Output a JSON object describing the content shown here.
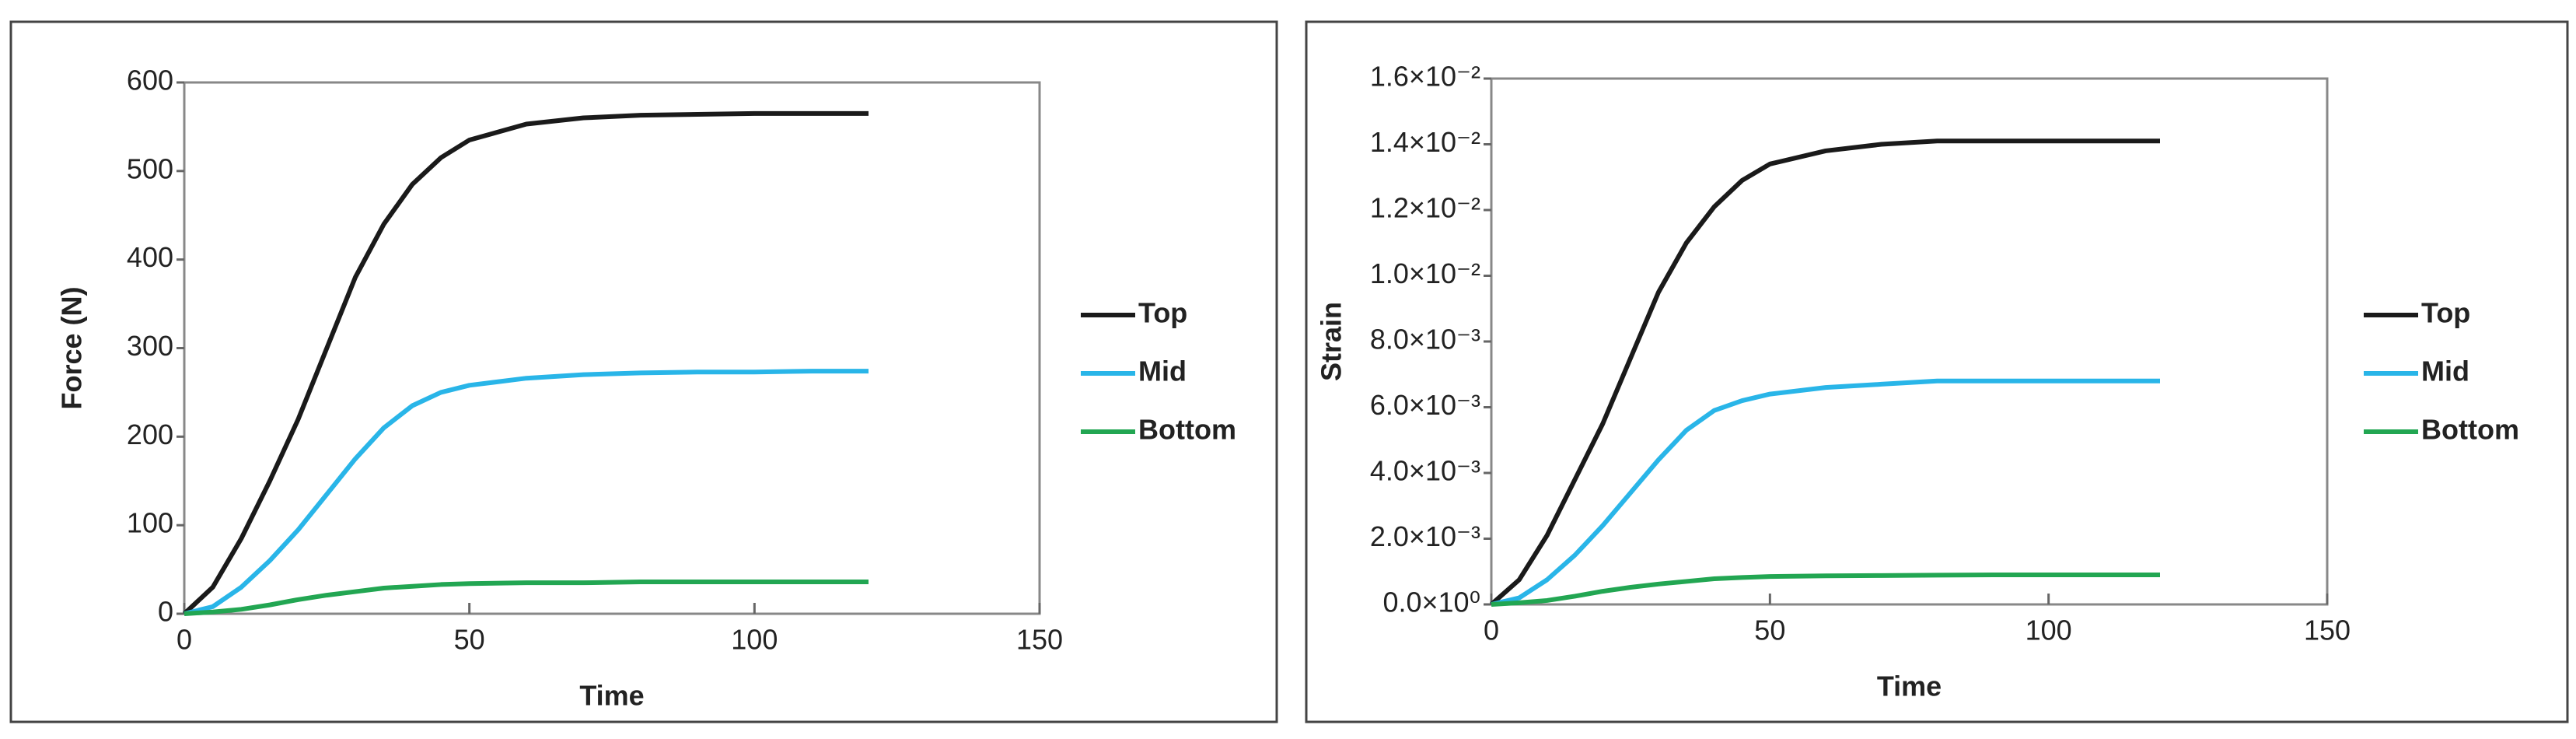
{
  "chart_data": [
    {
      "type": "line",
      "x_label": "Time",
      "y_label": "Force (N)",
      "x": [
        0,
        5,
        10,
        15,
        20,
        25,
        30,
        35,
        40,
        45,
        50,
        60,
        70,
        80,
        90,
        100,
        110,
        120
      ],
      "series": [
        {
          "name": "Top",
          "color": "#1a1a1a",
          "values": [
            0,
            30,
            85,
            150,
            220,
            300,
            380,
            440,
            485,
            515,
            535,
            553,
            560,
            563,
            564,
            565,
            565,
            565
          ]
        },
        {
          "name": "Mid",
          "color": "#29b5e8",
          "values": [
            0,
            8,
            30,
            60,
            95,
            135,
            175,
            210,
            235,
            250,
            258,
            266,
            270,
            272,
            273,
            273,
            274,
            274
          ]
        },
        {
          "name": "Bottom",
          "color": "#22a652",
          "values": [
            0,
            2,
            5,
            10,
            16,
            21,
            25,
            29,
            31,
            33,
            34,
            35,
            35,
            36,
            36,
            36,
            36,
            36
          ]
        }
      ],
      "xlim": [
        0,
        150
      ],
      "xticks": [
        0,
        50,
        100,
        150
      ],
      "ylim": [
        0,
        600
      ],
      "yticks": [
        0,
        100,
        200,
        300,
        400,
        500,
        600
      ],
      "legend": "right"
    },
    {
      "type": "line",
      "x_label": "Time",
      "y_label": "Strain",
      "x": [
        0,
        5,
        10,
        15,
        20,
        25,
        30,
        35,
        40,
        45,
        50,
        60,
        70,
        80,
        90,
        100,
        110,
        120
      ],
      "series": [
        {
          "name": "Top",
          "color": "#1a1a1a",
          "values": [
            0,
            0.00075,
            0.0021,
            0.0038,
            0.0055,
            0.0075,
            0.0095,
            0.011,
            0.0121,
            0.0129,
            0.0134,
            0.0138,
            0.014,
            0.0141,
            0.0141,
            0.0141,
            0.0141,
            0.0141
          ]
        },
        {
          "name": "Mid",
          "color": "#29b5e8",
          "values": [
            0,
            0.0002,
            0.00075,
            0.0015,
            0.0024,
            0.0034,
            0.0044,
            0.0053,
            0.0059,
            0.0062,
            0.0064,
            0.0066,
            0.0067,
            0.0068,
            0.0068,
            0.0068,
            0.0068,
            0.0068
          ]
        },
        {
          "name": "Bottom",
          "color": "#22a652",
          "values": [
            0,
            5e-05,
            0.00012,
            0.00025,
            0.0004,
            0.00052,
            0.00062,
            0.0007,
            0.00078,
            0.00082,
            0.00085,
            0.00087,
            0.00088,
            0.00089,
            0.0009,
            0.0009,
            0.0009,
            0.0009
          ]
        }
      ],
      "xlim": [
        0,
        150
      ],
      "xticks": [
        0,
        50,
        100,
        150
      ],
      "ylim": [
        0,
        0.016
      ],
      "yticks": [
        {
          "value": 0,
          "label": "0.0×10⁰"
        },
        {
          "value": 0.002,
          "label": "2.0×10⁻³"
        },
        {
          "value": 0.004,
          "label": "4.0×10⁻³"
        },
        {
          "value": 0.006,
          "label": "6.0×10⁻³"
        },
        {
          "value": 0.008,
          "label": "8.0×10⁻³"
        },
        {
          "value": 0.01,
          "label": "1.0×10⁻²"
        },
        {
          "value": 0.012,
          "label": "1.2×10⁻²"
        },
        {
          "value": 0.014,
          "label": "1.4×10⁻²"
        },
        {
          "value": 0.016,
          "label": "1.6×10⁻²"
        }
      ],
      "legend": "right"
    }
  ]
}
